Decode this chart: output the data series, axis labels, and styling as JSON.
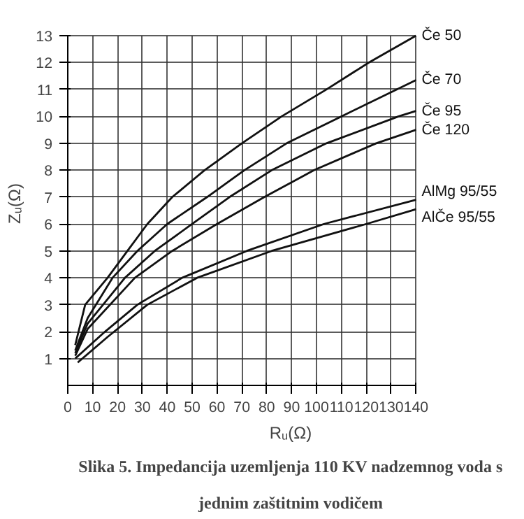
{
  "chart_data": {
    "type": "line",
    "title": "Slika 5. Impedancija uzemljenja 110 KV nadzemnog voda s\njednim zaštitnim vodičem",
    "xlabel": "Rᵤ(Ω)",
    "ylabel": "Zᵤ(Ω)",
    "xlim": [
      0,
      140
    ],
    "ylim": [
      0,
      13
    ],
    "xticks": [
      0,
      10,
      20,
      30,
      40,
      50,
      60,
      70,
      80,
      90,
      100,
      110,
      120,
      130,
      140
    ],
    "yticks": [
      1,
      2,
      3,
      4,
      5,
      6,
      7,
      8,
      9,
      10,
      11,
      12,
      13
    ],
    "grid": true,
    "marker": "none",
    "line_style": "solid",
    "series": [
      {
        "name": "Če 50",
        "color": "#111111",
        "x": [
          3,
          7,
          16,
          24,
          32,
          42,
          55,
          70,
          86,
          104,
          121,
          140
        ],
        "values": [
          1.5,
          3,
          4,
          5,
          6,
          7,
          8,
          9,
          10,
          11,
          12,
          13
        ]
      },
      {
        "name": "Če 70",
        "color": "#111111",
        "x": [
          3,
          8,
          18,
          28,
          40,
          56,
          71,
          88,
          110,
          140
        ],
        "values": [
          1.3,
          2.5,
          4,
          5,
          6,
          7,
          8,
          9,
          10,
          11.35
        ]
      },
      {
        "name": "Če 95",
        "color": "#111111",
        "x": [
          3,
          8,
          23,
          35,
          50,
          65,
          82,
          104,
          133,
          140
        ],
        "values": [
          1.2,
          2.3,
          4,
          5,
          6,
          7,
          8,
          9,
          10,
          10.2
        ]
      },
      {
        "name": "Če 120",
        "color": "#111111",
        "x": [
          3,
          8,
          27,
          42,
          60,
          79,
          99,
          124,
          140
        ],
        "values": [
          1.1,
          2.1,
          4,
          5,
          6,
          7,
          8,
          9,
          9.5
        ]
      },
      {
        "name": "AlMg 95/55",
        "color": "#111111",
        "x": [
          3,
          15,
          28,
          46,
          72,
          103,
          140
        ],
        "values": [
          1.0,
          2,
          3,
          4,
          5,
          6,
          6.9
        ]
      },
      {
        "name": "AlČe 95/55",
        "color": "#111111",
        "x": [
          4,
          16,
          32,
          52,
          82,
          120,
          140
        ],
        "values": [
          0.85,
          1.8,
          3,
          4,
          5,
          6,
          6.55
        ]
      }
    ]
  }
}
